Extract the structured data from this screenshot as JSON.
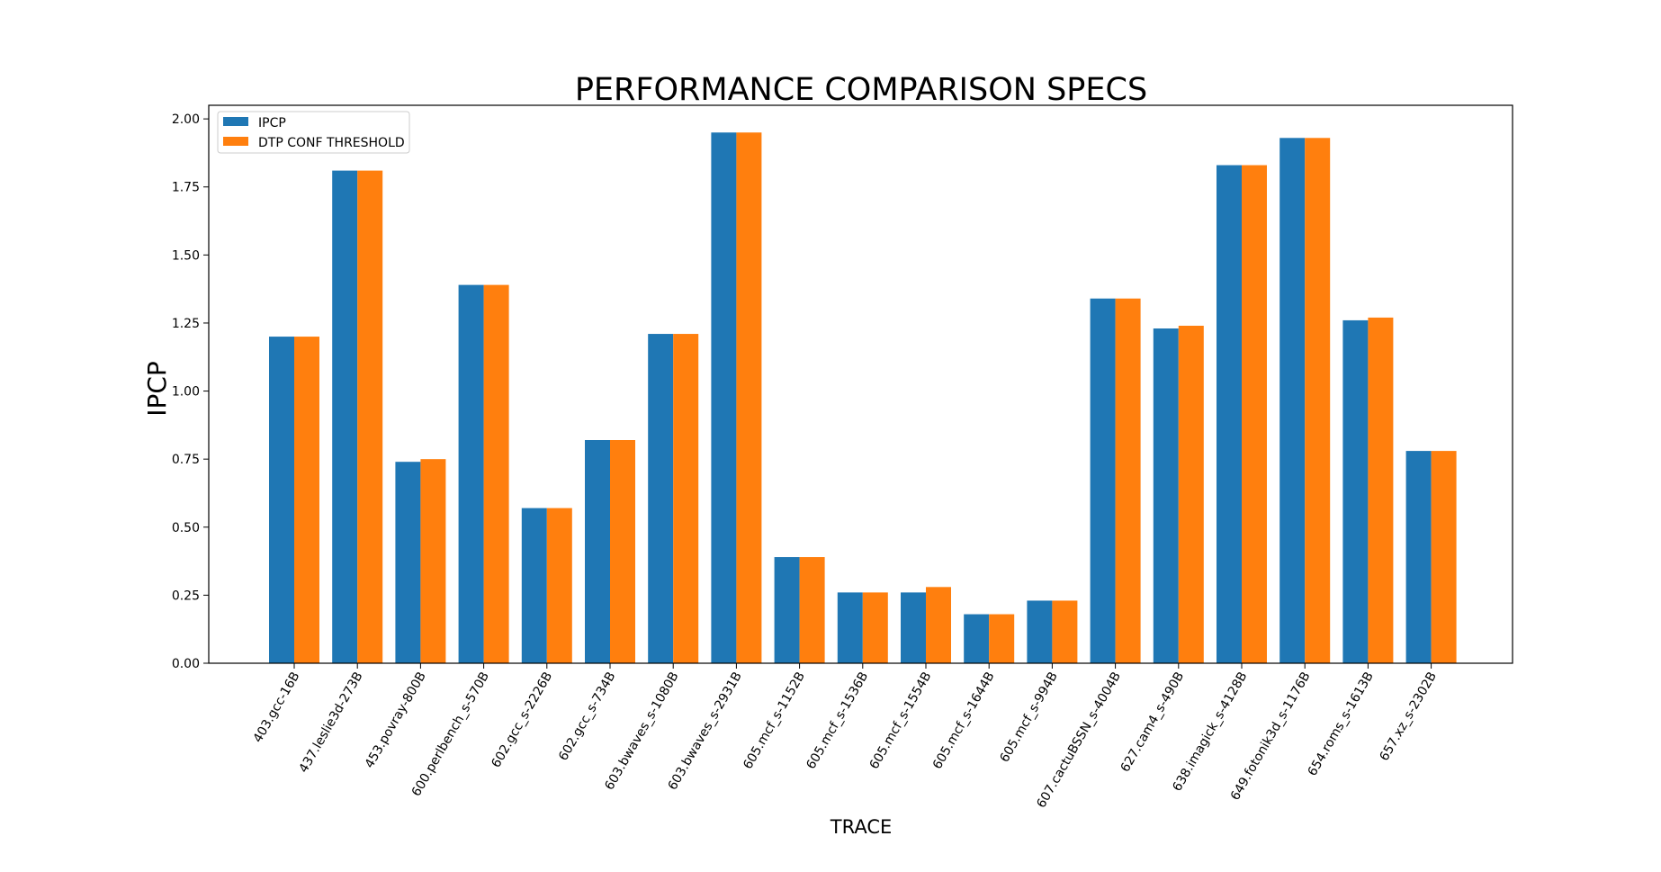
{
  "chart_data": {
    "type": "bar",
    "title": "PERFORMANCE COMPARISON SPECS",
    "xlabel": "TRACE",
    "ylabel": "IPCP",
    "ylim": [
      0,
      2.05
    ],
    "yticks": [
      "0.00",
      "0.25",
      "0.50",
      "0.75",
      "1.00",
      "1.25",
      "1.50",
      "1.75",
      "2.00"
    ],
    "grid": false,
    "legend_position": "top-left",
    "categories": [
      "403.gcc-16B",
      "437.leslie3d-273B",
      "453.povray-800B",
      "600.perlbench_s-570B",
      "602.gcc_s-2226B",
      "602.gcc_s-734B",
      "603.bwaves_s-1080B",
      "603.bwaves_s-2931B",
      "605.mcf_s-1152B",
      "605.mcf_s-1536B",
      "605.mcf_s-1554B",
      "605.mcf_s-1644B",
      "605.mcf_s-994B",
      "607.cactuBSSN_s-4004B",
      "627.cam4_s-490B",
      "638.imagick_s-4128B",
      "649.fotonik3d_s-1176B",
      "654.roms_s-1613B",
      "657.xz_s-2302B"
    ],
    "series": [
      {
        "name": "IPCP",
        "color": "#1f77b4",
        "values": [
          1.2,
          1.81,
          0.74,
          1.39,
          0.57,
          0.82,
          1.21,
          1.95,
          0.39,
          0.26,
          0.26,
          0.18,
          0.23,
          1.34,
          1.23,
          1.83,
          1.93,
          1.26,
          0.78
        ]
      },
      {
        "name": "DTP CONF THRESHOLD",
        "color": "#ff7f0e",
        "values": [
          1.2,
          1.81,
          0.75,
          1.39,
          0.57,
          0.82,
          1.21,
          1.95,
          0.39,
          0.26,
          0.28,
          0.18,
          0.23,
          1.34,
          1.24,
          1.83,
          1.93,
          1.27,
          0.78
        ]
      }
    ]
  }
}
